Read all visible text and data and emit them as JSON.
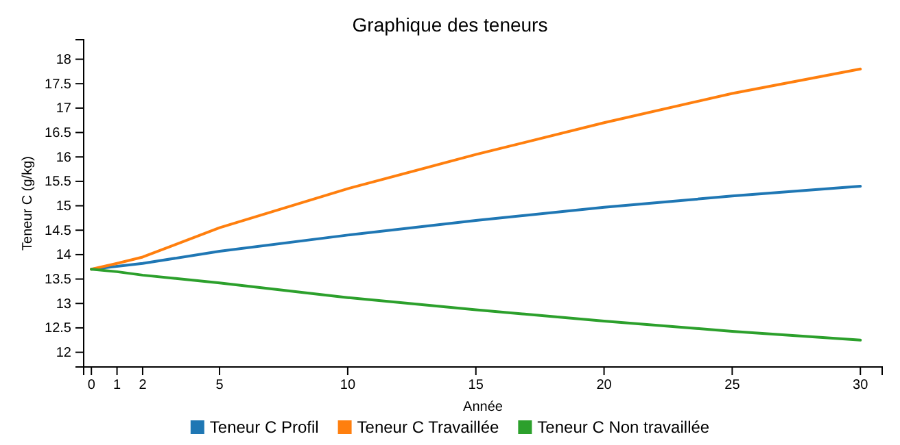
{
  "chart_data": {
    "type": "line",
    "title": "Graphique des teneurs",
    "xlabel": "Année",
    "ylabel": "Teneur C (g/kg)",
    "x": [
      0,
      1,
      2,
      5,
      10,
      15,
      20,
      25,
      30
    ],
    "xlim": [
      -0.3,
      30.85
    ],
    "xticks": [
      0,
      1,
      2,
      5,
      10,
      15,
      20,
      25,
      30
    ],
    "ylim": [
      11.7,
      18.4
    ],
    "yticks": [
      12,
      12.5,
      13,
      13.5,
      14,
      14.5,
      15,
      15.5,
      16,
      16.5,
      17,
      17.5,
      18
    ],
    "legend": "bottom",
    "grid": false,
    "marker": "none",
    "line_style": "solid",
    "series": [
      {
        "name": "Teneur C Profil",
        "color": "#1f77b4",
        "values": [
          13.7,
          13.76,
          13.82,
          14.07,
          14.4,
          14.7,
          14.97,
          15.2,
          15.4
        ]
      },
      {
        "name": "Teneur C Travaillée",
        "color": "#ff7f0e",
        "values": [
          13.7,
          13.82,
          13.95,
          14.55,
          15.35,
          16.05,
          16.7,
          17.3,
          17.8
        ]
      },
      {
        "name": "Teneur C Non travaillée",
        "color": "#2ca02c",
        "values": [
          13.7,
          13.65,
          13.58,
          13.42,
          13.12,
          12.87,
          12.64,
          12.43,
          12.25
        ]
      }
    ]
  }
}
